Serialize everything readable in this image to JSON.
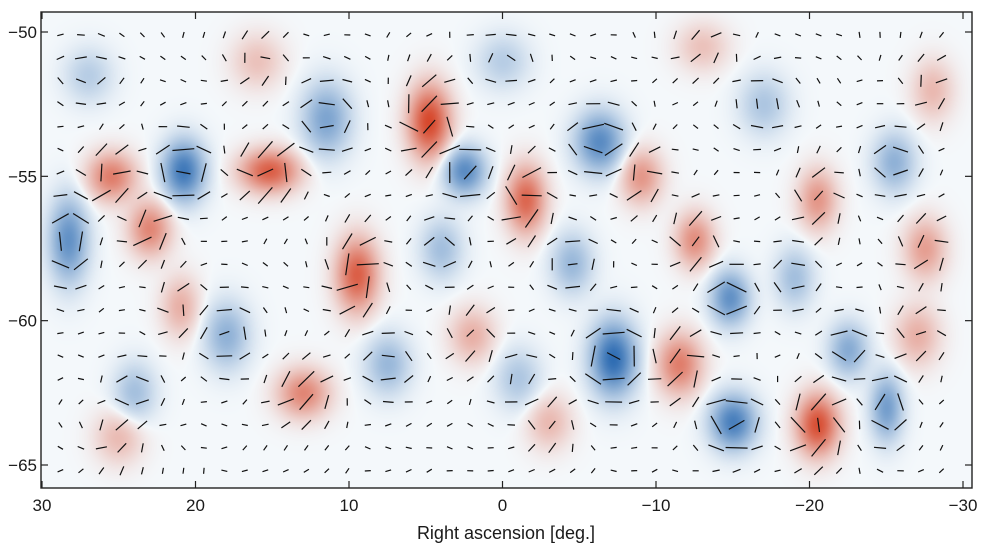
{
  "chart_data": {
    "type": "heatmap",
    "title": "",
    "xlabel": "Right ascension [deg.]",
    "ylabel": "",
    "xlim": [
      30,
      -30
    ],
    "ylim": [
      -66.2,
      -49.3
    ],
    "x_reversed": true,
    "x_ticks": [
      30,
      20,
      10,
      0,
      -10,
      -20,
      -30
    ],
    "x_tick_labels": [
      "30",
      "20",
      "10",
      "0",
      "−10",
      "−20",
      "−30"
    ],
    "y_ticks": [
      -50,
      -55,
      -60,
      -65
    ],
    "y_tick_labels": [
      "−50",
      "−55",
      "−60",
      "−65"
    ],
    "grid": false,
    "legend": "none",
    "colorscale": {
      "negative": "#2f6db3",
      "zero": "#f4f8fb",
      "positive": "#d7482c"
    },
    "overlay": "polarization orientation segments on a regular grid",
    "blobs": [
      {
        "x": 4.8,
        "y": -53.1,
        "sign": 1,
        "strength": 1.0,
        "sx": 1.3,
        "sy": 1.2
      },
      {
        "x": 15.2,
        "y": -54.8,
        "sign": 1,
        "strength": 0.85,
        "sx": 1.8,
        "sy": 0.7
      },
      {
        "x": 20.8,
        "y": -54.8,
        "sign": -1,
        "strength": 0.9,
        "sx": 1.3,
        "sy": 1.0
      },
      {
        "x": 25.5,
        "y": -55.0,
        "sign": 1,
        "strength": 0.65,
        "sx": 1.5,
        "sy": 0.8
      },
      {
        "x": 23.0,
        "y": -56.8,
        "sign": 1,
        "strength": 0.6,
        "sx": 1.3,
        "sy": 0.9
      },
      {
        "x": 28.3,
        "y": -57.2,
        "sign": -1,
        "strength": 0.7,
        "sx": 1.2,
        "sy": 1.4
      },
      {
        "x": 9.5,
        "y": -58.4,
        "sign": 1,
        "strength": 0.85,
        "sx": 1.3,
        "sy": 1.2
      },
      {
        "x": 11.5,
        "y": -53.0,
        "sign": -1,
        "strength": 0.55,
        "sx": 1.5,
        "sy": 1.2
      },
      {
        "x": 2.5,
        "y": -54.8,
        "sign": -1,
        "strength": 0.75,
        "sx": 1.3,
        "sy": 0.8
      },
      {
        "x": -1.5,
        "y": -55.8,
        "sign": 1,
        "strength": 0.8,
        "sx": 1.2,
        "sy": 1.1
      },
      {
        "x": -6.3,
        "y": -53.8,
        "sign": -1,
        "strength": 0.75,
        "sx": 1.5,
        "sy": 1.0
      },
      {
        "x": -9.0,
        "y": -55.0,
        "sign": 1,
        "strength": 0.5,
        "sx": 1.3,
        "sy": 0.9
      },
      {
        "x": -7.2,
        "y": -61.3,
        "sign": -1,
        "strength": 1.0,
        "sx": 1.4,
        "sy": 1.2
      },
      {
        "x": -11.5,
        "y": -61.5,
        "sign": 1,
        "strength": 0.65,
        "sx": 1.4,
        "sy": 1.0
      },
      {
        "x": -12.5,
        "y": -57.2,
        "sign": 1,
        "strength": 0.55,
        "sx": 1.2,
        "sy": 0.9
      },
      {
        "x": -14.8,
        "y": -59.2,
        "sign": -1,
        "strength": 0.7,
        "sx": 1.2,
        "sy": 0.9
      },
      {
        "x": -15.0,
        "y": -63.5,
        "sign": -1,
        "strength": 0.85,
        "sx": 1.4,
        "sy": 0.9
      },
      {
        "x": -20.5,
        "y": -63.6,
        "sign": 1,
        "strength": 0.95,
        "sx": 1.3,
        "sy": 1.0
      },
      {
        "x": -25.0,
        "y": -63.0,
        "sign": -1,
        "strength": 0.6,
        "sx": 1.0,
        "sy": 1.1
      },
      {
        "x": -22.5,
        "y": -61.0,
        "sign": -1,
        "strength": 0.5,
        "sx": 1.2,
        "sy": 0.9
      },
      {
        "x": -20.5,
        "y": -55.8,
        "sign": 1,
        "strength": 0.5,
        "sx": 1.2,
        "sy": 1.0
      },
      {
        "x": -25.5,
        "y": -54.5,
        "sign": -1,
        "strength": 0.45,
        "sx": 1.3,
        "sy": 1.0
      },
      {
        "x": -27.5,
        "y": -57.5,
        "sign": 1,
        "strength": 0.45,
        "sx": 1.3,
        "sy": 1.0
      },
      {
        "x": 13.0,
        "y": -62.5,
        "sign": 1,
        "strength": 0.6,
        "sx": 1.6,
        "sy": 0.8
      },
      {
        "x": 7.5,
        "y": -61.5,
        "sign": -1,
        "strength": 0.4,
        "sx": 1.4,
        "sy": 1.0
      },
      {
        "x": 18.0,
        "y": -60.5,
        "sign": -1,
        "strength": 0.45,
        "sx": 1.4,
        "sy": 1.1
      },
      {
        "x": 21.0,
        "y": -59.5,
        "sign": 1,
        "strength": 0.35,
        "sx": 1.2,
        "sy": 1.0
      },
      {
        "x": 24.0,
        "y": -62.5,
        "sign": -1,
        "strength": 0.35,
        "sx": 1.3,
        "sy": 1.0
      },
      {
        "x": 25.0,
        "y": -64.0,
        "sign": 1,
        "strength": 0.3,
        "sx": 1.5,
        "sy": 0.9
      },
      {
        "x": 2.0,
        "y": -60.5,
        "sign": 1,
        "strength": 0.35,
        "sx": 1.4,
        "sy": 0.9
      },
      {
        "x": -3.0,
        "y": -63.5,
        "sign": 1,
        "strength": 0.3,
        "sx": 1.4,
        "sy": 0.9
      },
      {
        "x": -1.0,
        "y": -62.0,
        "sign": -1,
        "strength": 0.3,
        "sx": 1.4,
        "sy": 1.0
      },
      {
        "x": 4.0,
        "y": -57.5,
        "sign": -1,
        "strength": 0.35,
        "sx": 1.3,
        "sy": 1.0
      },
      {
        "x": -4.5,
        "y": -58.0,
        "sign": -1,
        "strength": 0.4,
        "sx": 1.3,
        "sy": 1.0
      },
      {
        "x": -27.0,
        "y": -60.5,
        "sign": 1,
        "strength": 0.35,
        "sx": 1.4,
        "sy": 1.0
      },
      {
        "x": -17.0,
        "y": -52.5,
        "sign": -1,
        "strength": 0.3,
        "sx": 1.5,
        "sy": 1.0
      },
      {
        "x": 0.0,
        "y": -51.0,
        "sign": -1,
        "strength": 0.25,
        "sx": 1.6,
        "sy": 0.9
      },
      {
        "x": 16.0,
        "y": -51.0,
        "sign": 1,
        "strength": 0.25,
        "sx": 1.6,
        "sy": 0.9
      },
      {
        "x": -13.0,
        "y": -50.5,
        "sign": 1,
        "strength": 0.25,
        "sx": 1.6,
        "sy": 0.8
      },
      {
        "x": -28.0,
        "y": -52.0,
        "sign": 1,
        "strength": 0.3,
        "sx": 1.3,
        "sy": 1.0
      },
      {
        "x": 27.0,
        "y": -51.5,
        "sign": -1,
        "strength": 0.25,
        "sx": 1.5,
        "sy": 0.9
      },
      {
        "x": -19.0,
        "y": -58.5,
        "sign": -1,
        "strength": 0.35,
        "sx": 1.2,
        "sy": 1.0
      }
    ]
  }
}
